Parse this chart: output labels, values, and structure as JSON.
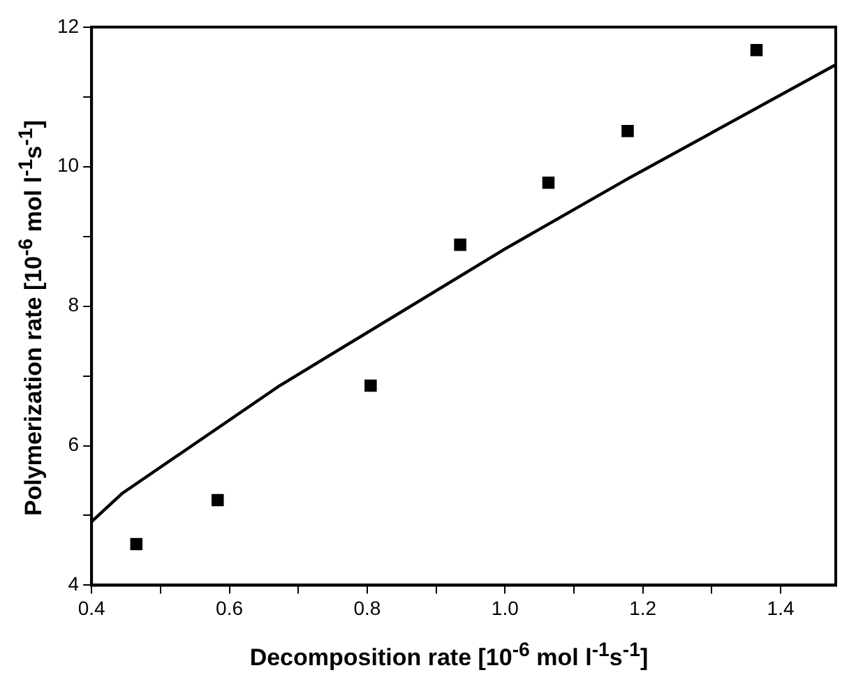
{
  "chart_data": {
    "type": "scatter",
    "xlabel": "Decomposition rate  [10$^{-6}$ mol l$^{-1}$s$^{-1}$]",
    "ylabel": "Polymerization rate  [10$^{-6}$ mol l$^{-1}$s$^{-1}$]",
    "series": [
      {
        "marker": "square",
        "color": "#000000",
        "x": [
          0.465,
          0.583,
          0.805,
          0.935,
          1.063,
          1.178,
          1.365
        ],
        "values": [
          4.59,
          5.22,
          6.86,
          8.88,
          9.77,
          10.51,
          11.67
        ]
      },
      {
        "type": "line",
        "marker": "none",
        "color": "#000000",
        "x": [
          0.4,
          0.445,
          0.673,
          1.0,
          1.179,
          1.48
        ],
        "values": [
          4.91,
          5.32,
          6.86,
          8.82,
          9.83,
          11.46
        ]
      }
    ],
    "line_style": "solid",
    "grid": false,
    "legend": false,
    "xlim": [
      0.4,
      1.48
    ],
    "ylim": [
      4,
      12
    ],
    "xticks": [
      0.4,
      {
        "value": 0.5,
        "label": null
      },
      0.6,
      {
        "value": 0.7,
        "label": null
      },
      0.8,
      {
        "value": 0.9,
        "label": null
      },
      {
        "value": 1,
        "label": "1.0"
      },
      {
        "value": 1.1,
        "label": null
      },
      1.2,
      {
        "value": 1.3,
        "label": null
      },
      1.4
    ],
    "yticks": [
      4,
      {
        "value": 5,
        "label": null
      },
      6,
      {
        "value": 7,
        "label": null
      },
      8,
      {
        "value": 9,
        "label": null
      },
      10,
      {
        "value": 11,
        "label": null
      },
      12
    ]
  }
}
